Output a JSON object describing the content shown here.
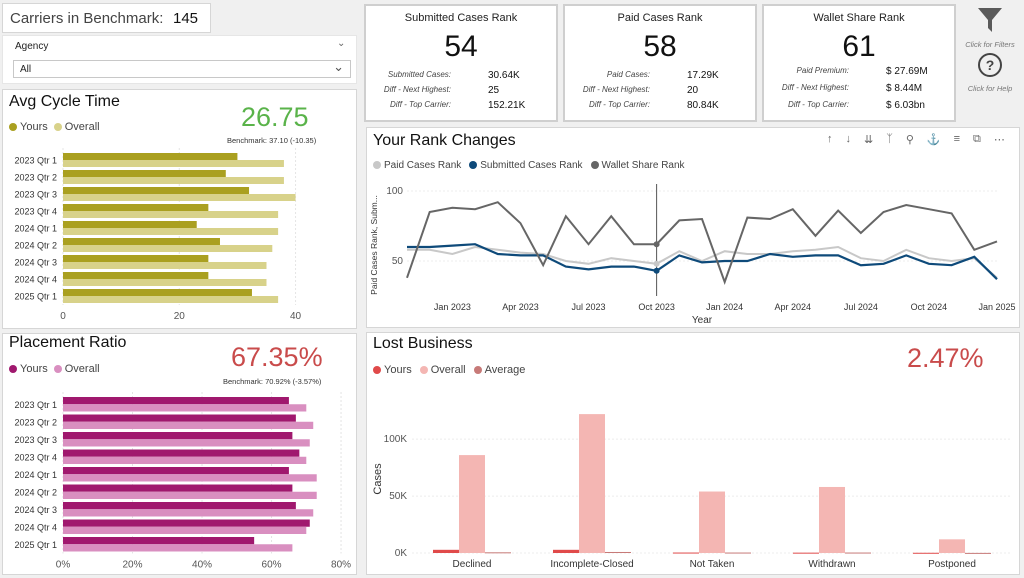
{
  "carriers": {
    "label": "Carriers in Benchmark:",
    "value": "145"
  },
  "agency": {
    "label": "Agency",
    "selected": "All"
  },
  "kpis": [
    {
      "title": "Submitted Cases Rank",
      "value": "54",
      "rows": [
        {
          "label": "Submitted Cases:",
          "value": "30.64K"
        },
        {
          "label": "Diff - Next Highest:",
          "value": "25"
        },
        {
          "label": "Diff - Top Carrier:",
          "value": "152.21K"
        }
      ]
    },
    {
      "title": "Paid Cases Rank",
      "value": "58",
      "rows": [
        {
          "label": "Paid Cases:",
          "value": "17.29K"
        },
        {
          "label": "Diff - Next Highest:",
          "value": "20"
        },
        {
          "label": "Diff - Top Carrier:",
          "value": "80.84K"
        }
      ]
    },
    {
      "title": "Wallet Share Rank",
      "value": "61",
      "rows": [
        {
          "label": "Paid Premium:",
          "value": "$ 27.69M"
        },
        {
          "label": "Diff - Next Highest:",
          "value": "$ 8.44M"
        },
        {
          "label": "Diff - Top Carrier:",
          "value": "$ 6.03bn"
        }
      ]
    }
  ],
  "side_actions": {
    "filters": "Click for Filters",
    "help": "Click for Help"
  },
  "avg_cycle": {
    "title": "Avg Cycle Time",
    "value": "26.75",
    "benchmark": "Benchmark: 37.10 (-10.35)",
    "legend": [
      "Yours",
      "Overall"
    ],
    "colors": {
      "yours": "#aaa020",
      "overall": "#d8d28a",
      "value": "#5ab34a"
    }
  },
  "placement": {
    "title": "Placement Ratio",
    "value": "67.35%",
    "benchmark": "Benchmark: 70.92% (-3.57%)",
    "legend": [
      "Yours",
      "Overall"
    ],
    "colors": {
      "yours": "#a0186e",
      "overall": "#d98fc0",
      "value": "#c94b4b"
    }
  },
  "rank_changes": {
    "title": "Your Rank Changes",
    "legend": [
      "Paid Cases Rank",
      "Submitted Cases Rank",
      "Wallet Share Rank"
    ],
    "colors": [
      "#c8c8c8",
      "#0e4a7a",
      "#666666"
    ],
    "toolbar_icons": [
      "arrow-up-icon",
      "arrow-down-icon",
      "double-arrow-down-icon",
      "fork-icon",
      "pin-icon",
      "bell-icon",
      "filter-lines-icon",
      "focus-icon",
      "more-icon"
    ]
  },
  "lost_business": {
    "title": "Lost Business",
    "value": "2.47%",
    "legend": [
      "Yours",
      "Overall",
      "Average"
    ],
    "colors": {
      "yours": "#e04a4a",
      "overall": "#f4b6b3",
      "average": "#c77a78",
      "value": "#c94b4b"
    }
  },
  "chart_data": [
    {
      "type": "bar",
      "title": "Avg Cycle Time",
      "categories": [
        "2023 Qtr 1",
        "2023 Qtr 2",
        "2023 Qtr 3",
        "2023 Qtr 4",
        "2024 Qtr 1",
        "2024 Qtr 2",
        "2024 Qtr 3",
        "2024 Qtr 4",
        "2025 Qtr 1"
      ],
      "series": [
        {
          "name": "Yours",
          "values": [
            30,
            28,
            32,
            25,
            23,
            27,
            25,
            25,
            32.5
          ]
        },
        {
          "name": "Overall",
          "values": [
            38,
            38,
            40,
            37,
            37,
            36,
            35,
            35,
            37
          ]
        }
      ],
      "xticks": [
        "0",
        "20",
        "40"
      ],
      "xlim": [
        0,
        43
      ]
    },
    {
      "type": "bar",
      "title": "Placement Ratio",
      "categories": [
        "2023 Qtr 1",
        "2023 Qtr 2",
        "2023 Qtr 3",
        "2023 Qtr 4",
        "2024 Qtr 1",
        "2024 Qtr 2",
        "2024 Qtr 3",
        "2024 Qtr 4",
        "2025 Qtr 1"
      ],
      "series": [
        {
          "name": "Yours",
          "values": [
            65,
            67,
            66,
            68,
            65,
            66,
            67,
            71,
            55
          ]
        },
        {
          "name": "Overall",
          "values": [
            70,
            72,
            71,
            70,
            73,
            73,
            72,
            70,
            66
          ]
        }
      ],
      "xticks": [
        "0%",
        "20%",
        "40%",
        "60%",
        "80%"
      ],
      "xlim": [
        0,
        82
      ]
    },
    {
      "type": "line",
      "title": "Your Rank Changes",
      "xlabel": "Year",
      "ylabel": "Paid Cases Rank, Subm...",
      "x": [
        "Nov 2022",
        "Dec 2022",
        "Jan 2023",
        "Feb 2023",
        "Mar 2023",
        "Apr 2023",
        "May 2023",
        "Jun 2023",
        "Jul 2023",
        "Aug 2023",
        "Sep 2023",
        "Oct 2023",
        "Nov 2023",
        "Dec 2023",
        "Jan 2024",
        "Feb 2024",
        "Mar 2024",
        "Apr 2024",
        "May 2024",
        "Jun 2024",
        "Jul 2024",
        "Aug 2024",
        "Sep 2024",
        "Oct 2024",
        "Nov 2024",
        "Dec 2024",
        "Jan 2025"
      ],
      "xticks": [
        "Jan 2023",
        "Apr 2023",
        "Jul 2023",
        "Oct 2023",
        "Jan 2024",
        "Apr 2024",
        "Jul 2024",
        "Oct 2024",
        "Jan 2025"
      ],
      "yticks": [
        "50",
        "100"
      ],
      "ylim": [
        25,
        105
      ],
      "series": [
        {
          "name": "Paid Cases Rank",
          "values": [
            58,
            58,
            55,
            60,
            58,
            56,
            55,
            50,
            48,
            52,
            50,
            48,
            57,
            50,
            57,
            55,
            55,
            57,
            58,
            60,
            52,
            50,
            58,
            52,
            50,
            52,
            38
          ]
        },
        {
          "name": "Submitted Cases Rank",
          "values": [
            60,
            60,
            61,
            62,
            55,
            54,
            54,
            46,
            44,
            46,
            46,
            43,
            54,
            49,
            50,
            50,
            55,
            53,
            54,
            54,
            47,
            48,
            54,
            48,
            47,
            53,
            37
          ]
        },
        {
          "name": "Wallet Share Rank",
          "values": [
            38,
            85,
            88,
            87,
            92,
            77,
            47,
            82,
            62,
            82,
            62,
            62,
            79,
            80,
            35,
            81,
            80,
            87,
            68,
            86,
            70,
            85,
            90,
            87,
            84,
            58,
            64
          ]
        }
      ]
    },
    {
      "type": "bar",
      "title": "Lost Business",
      "ylabel": "Cases",
      "categories": [
        "Declined",
        "Incomplete-Closed",
        "Not Taken",
        "Withdrawn",
        "Postponed"
      ],
      "series": [
        {
          "name": "Yours",
          "values": [
            2800,
            2800,
            400,
            300,
            200
          ]
        },
        {
          "name": "Overall",
          "values": [
            86000,
            122000,
            54000,
            58000,
            12000
          ]
        },
        {
          "name": "Average",
          "values": [
            600,
            900,
            400,
            400,
            100
          ]
        }
      ],
      "yticks": [
        "0K",
        "50K",
        "100K"
      ],
      "ylim": [
        0,
        130000
      ]
    }
  ]
}
